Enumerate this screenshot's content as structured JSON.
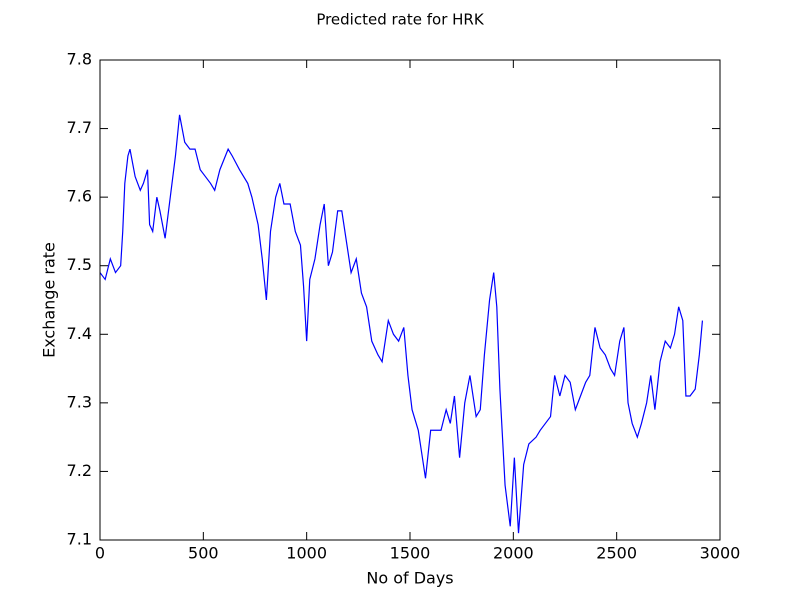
{
  "chart_data": {
    "type": "line",
    "title": "Predicted rate for HRK",
    "x_label": "No of Days",
    "y_label": "Exchange rate",
    "x": [
      0,
      25,
      50,
      75,
      100,
      110,
      120,
      135,
      145,
      170,
      195,
      210,
      230,
      240,
      255,
      275,
      290,
      315,
      340,
      365,
      385,
      410,
      435,
      460,
      485,
      510,
      535,
      555,
      580,
      620,
      640,
      675,
      715,
      735,
      765,
      785,
      805,
      825,
      850,
      870,
      890,
      920,
      945,
      970,
      985,
      1000,
      1015,
      1040,
      1065,
      1085,
      1105,
      1125,
      1150,
      1170,
      1195,
      1215,
      1240,
      1265,
      1290,
      1315,
      1345,
      1365,
      1395,
      1420,
      1445,
      1470,
      1490,
      1510,
      1540,
      1560,
      1575,
      1600,
      1625,
      1650,
      1675,
      1695,
      1715,
      1740,
      1765,
      1790,
      1820,
      1840,
      1860,
      1885,
      1905,
      1920,
      1935,
      1960,
      1985,
      2005,
      2025,
      2050,
      2075,
      2110,
      2130,
      2155,
      2180,
      2200,
      2225,
      2250,
      2275,
      2300,
      2325,
      2350,
      2370,
      2395,
      2420,
      2445,
      2470,
      2490,
      2515,
      2535,
      2555,
      2575,
      2600,
      2620,
      2645,
      2665,
      2685,
      2710,
      2735,
      2760,
      2780,
      2800,
      2820,
      2835,
      2855,
      2880,
      2900,
      2915
    ],
    "series": [
      {
        "name": "Predicted rate",
        "color": "#0000ff",
        "values": [
          7.49,
          7.48,
          7.51,
          7.49,
          7.5,
          7.55,
          7.62,
          7.66,
          7.67,
          7.63,
          7.61,
          7.62,
          7.64,
          7.56,
          7.55,
          7.6,
          7.58,
          7.54,
          7.6,
          7.66,
          7.72,
          7.68,
          7.67,
          7.67,
          7.64,
          7.63,
          7.62,
          7.61,
          7.64,
          7.67,
          7.66,
          7.64,
          7.62,
          7.6,
          7.56,
          7.51,
          7.45,
          7.55,
          7.6,
          7.62,
          7.59,
          7.59,
          7.55,
          7.53,
          7.47,
          7.39,
          7.48,
          7.51,
          7.56,
          7.59,
          7.5,
          7.52,
          7.58,
          7.58,
          7.53,
          7.49,
          7.51,
          7.46,
          7.44,
          7.39,
          7.37,
          7.36,
          7.42,
          7.4,
          7.39,
          7.41,
          7.34,
          7.29,
          7.26,
          7.22,
          7.19,
          7.26,
          7.26,
          7.26,
          7.29,
          7.27,
          7.31,
          7.22,
          7.3,
          7.34,
          7.28,
          7.29,
          7.37,
          7.45,
          7.49,
          7.44,
          7.32,
          7.18,
          7.12,
          7.22,
          7.11,
          7.21,
          7.24,
          7.25,
          7.26,
          7.27,
          7.28,
          7.34,
          7.31,
          7.34,
          7.33,
          7.29,
          7.31,
          7.33,
          7.34,
          7.41,
          7.38,
          7.37,
          7.35,
          7.34,
          7.39,
          7.41,
          7.3,
          7.27,
          7.25,
          7.27,
          7.3,
          7.34,
          7.29,
          7.36,
          7.39,
          7.38,
          7.4,
          7.44,
          7.42,
          7.31,
          7.31,
          7.32,
          7.37,
          7.42
        ]
      }
    ],
    "xlim": [
      0,
      3000
    ],
    "xticks": [
      0,
      500,
      1000,
      1500,
      2000,
      2500,
      3000
    ],
    "ylim": [
      7.1,
      7.8
    ],
    "yticks": [
      7.1,
      7.2,
      7.3,
      7.4,
      7.5,
      7.6,
      7.7,
      7.8
    ]
  }
}
